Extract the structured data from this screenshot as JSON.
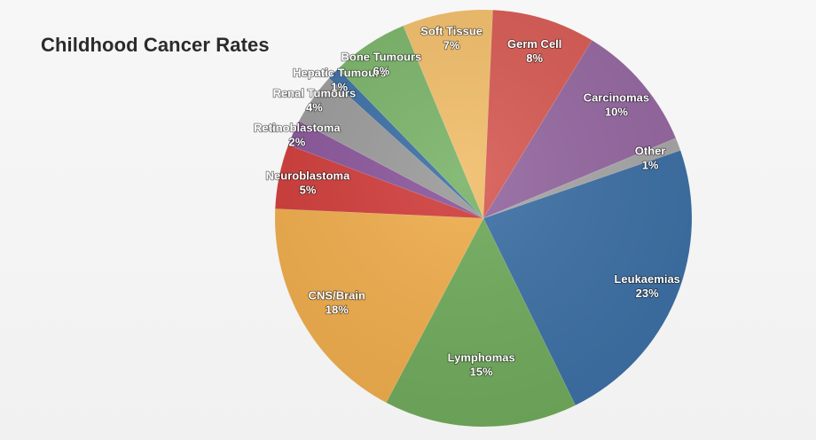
{
  "title": "Childhood Cancer Rates",
  "chart_data": {
    "type": "pie",
    "title": "Childhood Cancer Rates",
    "slices": [
      {
        "label": "Leukaemias",
        "value": 23,
        "display": "23%",
        "color": "#3c6fa4"
      },
      {
        "label": "Lymphomas",
        "value": 15,
        "display": "15%",
        "color": "#6fa95b"
      },
      {
        "label": "CNS/Brain",
        "value": 18,
        "display": "18%",
        "color": "#eeac4c"
      },
      {
        "label": "Neuroblastoma",
        "value": 5,
        "display": "5%",
        "color": "#cf3d3b"
      },
      {
        "label": "Retinoblastoma",
        "value": 2,
        "display": "2%",
        "color": "#8a569a"
      },
      {
        "label": "Renal Tumours",
        "value": 4,
        "display": "4%",
        "color": "#9a9a9a"
      },
      {
        "label": "Hepatic Tumours",
        "value": 1,
        "display": "1%",
        "color": "#3c6fa4"
      },
      {
        "label": "Bone Tumours",
        "value": 6,
        "display": "6%",
        "color": "#7ab369"
      },
      {
        "label": "Soft Tissue",
        "value": 7,
        "display": "7%",
        "color": "#f0bd6a"
      },
      {
        "label": "Germ Cell",
        "value": 8,
        "display": "8%",
        "color": "#d65a53"
      },
      {
        "label": "Carcinomas",
        "value": 10,
        "display": "10%",
        "color": "#9467a0"
      },
      {
        "label": "Other",
        "value": 1,
        "display": "1%",
        "color": "#a6a6a6"
      }
    ]
  }
}
